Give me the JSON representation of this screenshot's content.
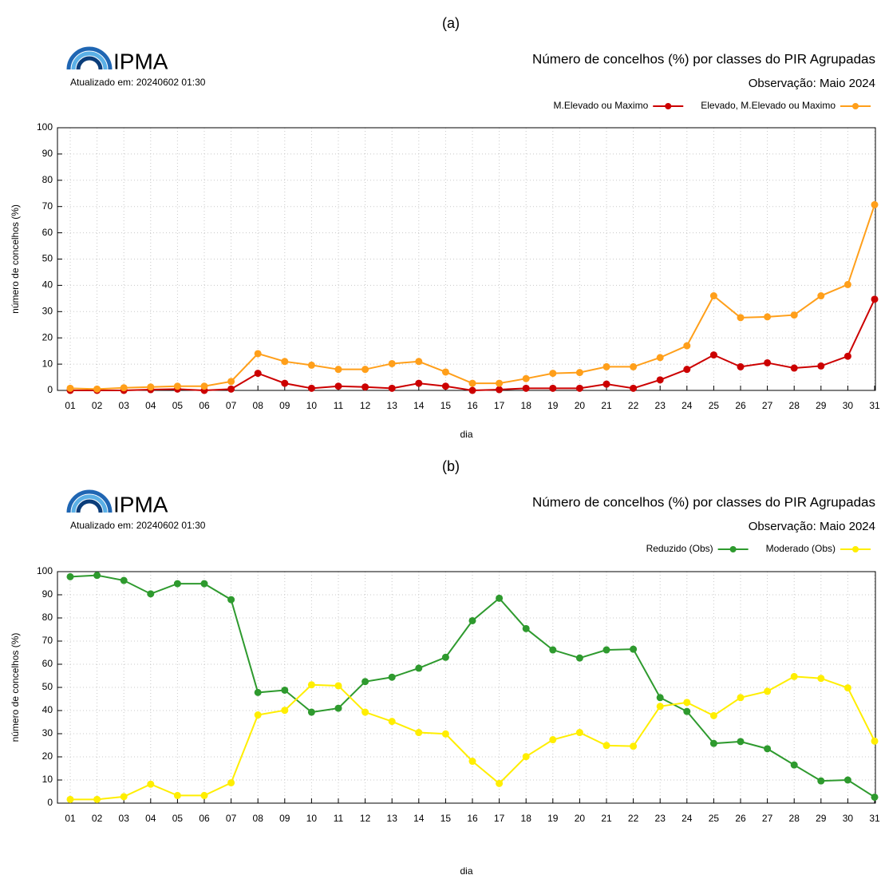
{
  "chart_data": [
    {
      "type": "line",
      "panel_label": "(a)",
      "logo": "IPMA",
      "updated": "Atualizado em: 20240602 01:30",
      "title": "Número de concelhos (%) por classes do PIR Agrupadas",
      "subtitle": "Observação: Maio 2024",
      "x_label": "dia",
      "y_label": "número de concelhos (%)",
      "categories": [
        "01",
        "02",
        "03",
        "04",
        "05",
        "06",
        "07",
        "08",
        "09",
        "10",
        "11",
        "12",
        "13",
        "14",
        "15",
        "16",
        "17",
        "18",
        "19",
        "20",
        "21",
        "22",
        "23",
        "24",
        "25",
        "26",
        "27",
        "28",
        "29",
        "30",
        "31"
      ],
      "series": [
        {
          "name": "M.Elevado ou Maximo",
          "color": "#cc0000",
          "values": [
            0,
            0,
            0,
            0.3,
            0.5,
            0,
            0.5,
            6.5,
            2.7,
            0.8,
            1.6,
            1.3,
            0.8,
            2.7,
            1.6,
            0,
            0.3,
            0.8,
            0.8,
            0.8,
            2.4,
            0.8,
            4,
            8,
            13.5,
            9,
            10.5,
            8.5,
            9.3,
            13,
            34.7
          ]
        },
        {
          "name": "Elevado, M.Elevado ou Maximo",
          "color": "#ff9f1a",
          "values": [
            0.8,
            0.5,
            1,
            1.3,
            1.6,
            1.6,
            3.4,
            14,
            11,
            9.6,
            8,
            8,
            10.2,
            11,
            7,
            2.7,
            2.7,
            4.5,
            6.5,
            6.8,
            9,
            9,
            12.5,
            17,
            36,
            27.7,
            28,
            28.7,
            36,
            40.3,
            70.7
          ]
        }
      ],
      "ylim": [
        0,
        100
      ],
      "yticks": [
        0,
        10,
        20,
        30,
        40,
        50,
        60,
        70,
        80,
        90,
        100
      ],
      "grid": true,
      "legend": "top-right"
    },
    {
      "type": "line",
      "panel_label": "(b)",
      "logo": "IPMA",
      "updated": "Atualizado em: 20240602 01:30",
      "title": "Número de concelhos (%) por classes do PIR Agrupadas",
      "subtitle": "Observação: Maio 2024",
      "x_label": "dia",
      "y_label": "número de concelhos (%)",
      "categories": [
        "01",
        "02",
        "03",
        "04",
        "05",
        "06",
        "07",
        "08",
        "09",
        "10",
        "11",
        "12",
        "13",
        "14",
        "15",
        "16",
        "17",
        "18",
        "19",
        "20",
        "21",
        "22",
        "23",
        "24",
        "25",
        "26",
        "27",
        "28",
        "29",
        "30",
        "31"
      ],
      "series": [
        {
          "name": "Reduzido (Obs)",
          "color": "#2e9a2e",
          "values": [
            97.8,
            98.4,
            96.2,
            90.4,
            94.8,
            94.8,
            87.9,
            47.8,
            48.8,
            39.3,
            41,
            52.5,
            54.4,
            58.3,
            63,
            78.8,
            88.5,
            75.4,
            66.2,
            62.7,
            66.2,
            66.5,
            45.6,
            39.6,
            25.8,
            26.6,
            23.5,
            16.5,
            9.6,
            10,
            2.6
          ]
        },
        {
          "name": "Moderado (Obs)",
          "color": "#ffee00",
          "values": [
            1.6,
            1.6,
            2.8,
            8.2,
            3.3,
            3.3,
            8.8,
            38.1,
            40.1,
            51.1,
            50.7,
            39.3,
            35.3,
            30.5,
            29.9,
            18.1,
            8.5,
            20.1,
            27.4,
            30.5,
            24.9,
            24.6,
            41.8,
            43.5,
            37.8,
            45.6,
            48.3,
            54.7,
            53.9,
            49.8,
            26.8
          ]
        }
      ],
      "ylim": [
        0,
        100
      ],
      "yticks": [
        0,
        10,
        20,
        30,
        40,
        50,
        60,
        70,
        80,
        90,
        100
      ],
      "grid": true,
      "legend": "top-right"
    }
  ]
}
